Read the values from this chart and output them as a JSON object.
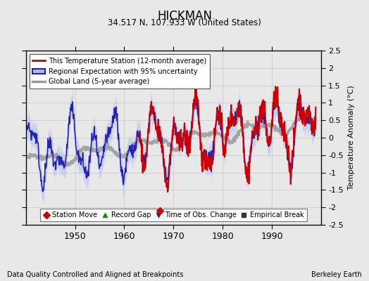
{
  "title": "HICKMAN",
  "subtitle": "34.517 N, 107.933 W (United States)",
  "ylabel": "Temperature Anomaly (°C)",
  "footer_left": "Data Quality Controlled and Aligned at Breakpoints",
  "footer_right": "Berkeley Earth",
  "ylim": [
    -2.5,
    2.5
  ],
  "xlim": [
    1940,
    2000
  ],
  "yticks": [
    -2.5,
    -2,
    -1.5,
    -1,
    -0.5,
    0,
    0.5,
    1,
    1.5,
    2,
    2.5
  ],
  "xticks": [
    1950,
    1960,
    1970,
    1980,
    1990
  ],
  "background_color": "#e8e8e8",
  "plot_background": "#e8e8e8",
  "red_start_year": 1963,
  "station_move_x": 1967.3,
  "station_move_y": -2.1,
  "blue_line_color": "#2222bb",
  "red_line_color": "#cc0000",
  "gray_line_color": "#999999",
  "band_color": "#aabbee"
}
